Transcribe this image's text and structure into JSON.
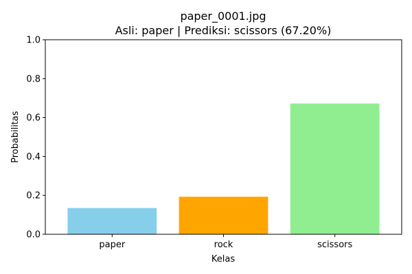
{
  "chart_data": {
    "type": "bar",
    "title_line1": "paper_0001.jpg",
    "title_line2": "Asli: paper | Prediksi: scissors (67.20%)",
    "xlabel": "Kelas",
    "ylabel": "Probabilitas",
    "categories": [
      "paper",
      "rock",
      "scissors"
    ],
    "values": [
      0.135,
      0.193,
      0.672
    ],
    "colors": [
      "#87ceeb",
      "#ffa500",
      "#90ee90"
    ],
    "ylim": [
      0,
      1
    ],
    "yticks": [
      "0.0",
      "0.2",
      "0.4",
      "0.6",
      "0.8",
      "1.0"
    ],
    "grid": false,
    "legend": "none"
  }
}
